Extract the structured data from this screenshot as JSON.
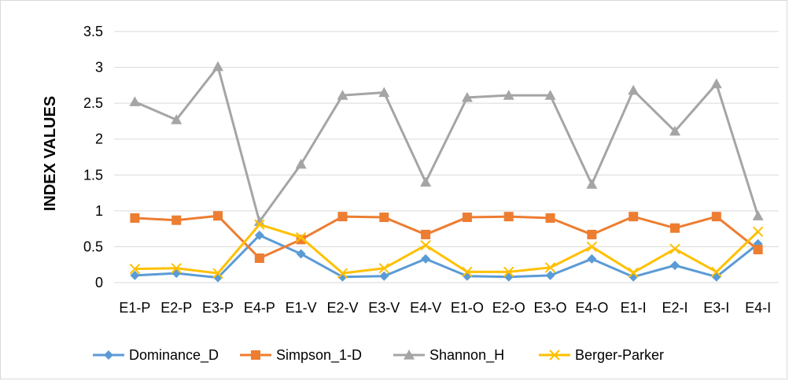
{
  "chart_data": {
    "type": "line",
    "title": "",
    "xlabel": "",
    "ylabel": "INDEX VALUES",
    "ylim": [
      0,
      3.5
    ],
    "yticks": [
      "0",
      "0.5",
      "1",
      "1.5",
      "2",
      "2.5",
      "3",
      "3.5"
    ],
    "grid": true,
    "legend_position": "bottom",
    "categories": [
      "E1-P",
      "E2-P",
      "E3-P",
      "E4-P",
      "E1-V",
      "E2-V",
      "E3-V",
      "E4-V",
      "E1-O",
      "E2-O",
      "E3-O",
      "E4-O",
      "E1-I",
      "E2-I",
      "E3-I",
      "E4-I"
    ],
    "series": [
      {
        "name": "Dominance_D",
        "color": "#5b9bd5",
        "marker": "diamond",
        "values": [
          0.1,
          0.13,
          0.07,
          0.66,
          0.4,
          0.08,
          0.09,
          0.33,
          0.09,
          0.08,
          0.1,
          0.33,
          0.08,
          0.24,
          0.08,
          0.54
        ]
      },
      {
        "name": "Simpson_1-D",
        "color": "#ed7d31",
        "marker": "square",
        "values": [
          0.9,
          0.87,
          0.93,
          0.34,
          0.6,
          0.92,
          0.91,
          0.67,
          0.91,
          0.92,
          0.9,
          0.67,
          0.92,
          0.76,
          0.92,
          0.46
        ]
      },
      {
        "name": "Shannon_H",
        "color": "#a5a5a5",
        "marker": "triangle",
        "values": [
          2.52,
          2.27,
          3.01,
          0.85,
          1.65,
          2.61,
          2.65,
          1.4,
          2.58,
          2.61,
          2.61,
          1.37,
          2.68,
          2.11,
          2.77,
          0.93
        ]
      },
      {
        "name": "Berger-Parker",
        "color": "#ffc000",
        "marker": "x",
        "values": [
          0.19,
          0.2,
          0.13,
          0.81,
          0.63,
          0.13,
          0.2,
          0.52,
          0.15,
          0.15,
          0.21,
          0.5,
          0.14,
          0.47,
          0.15,
          0.71
        ]
      }
    ]
  }
}
